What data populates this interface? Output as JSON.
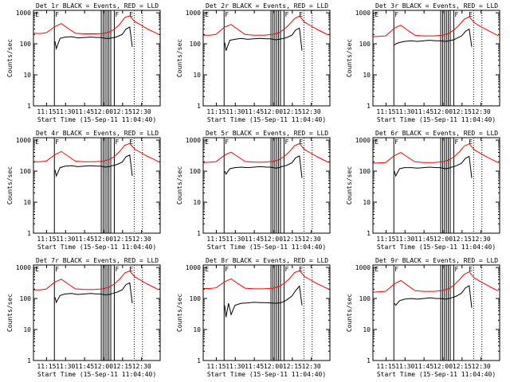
{
  "figure": {
    "background": "#ffffff",
    "series_colors": {
      "events": "#000000",
      "lld": "#ff0000"
    },
    "common": {
      "ylabel": "Counts/sec",
      "xlabel": "Start Time (15-Sep-11 11:04:40)",
      "x_ticks": [
        "11:15",
        "11:30",
        "11:45",
        "12:00",
        "12:15",
        "12:30"
      ],
      "x_tick_minutes": [
        10.33,
        25.33,
        40.33,
        55.33,
        70.33,
        85.33
      ],
      "x_range_minutes": [
        0,
        100
      ],
      "y_ticks": [
        "1",
        "10",
        "100",
        "1000"
      ],
      "y_tick_values": [
        1,
        10,
        100,
        1000
      ],
      "y_range": [
        1,
        1200
      ],
      "y_scale": "log",
      "flag_labels": [
        "E",
        "F",
        "F",
        "E"
      ],
      "flag_minutes": [
        0.8,
        16.5,
        63.8,
        75.0
      ],
      "solid_vlines_minutes": [
        16.5,
        53.5,
        55.0,
        56.5,
        58.0,
        59.5,
        61.0,
        63.8
      ],
      "dotted_vlines_minutes": [
        79.5,
        86.0
      ]
    }
  },
  "chart_data": [
    {
      "type": "line",
      "title": "Det 1r BLACK = Events, RED = LLD",
      "series": [
        {
          "x": [
            0,
            5,
            10,
            17,
            22,
            27,
            33,
            40,
            48,
            55,
            60,
            64,
            68,
            72,
            76,
            80,
            85,
            90,
            95,
            99
          ],
          "values": [
            220,
            215,
            225,
            360,
            450,
            320,
            220,
            210,
            210,
            215,
            240,
            300,
            420,
            700,
            800,
            520,
            400,
            300,
            240,
            200
          ]
        },
        {
          "x": [
            17,
            18,
            21,
            25,
            30,
            35,
            40,
            45,
            50,
            53,
            57,
            60,
            62,
            63.8,
            66,
            70,
            73,
            76,
            78
          ],
          "values": [
            120,
            70,
            150,
            165,
            170,
            155,
            160,
            165,
            160,
            160,
            150,
            150,
            155,
            160,
            170,
            200,
            300,
            350,
            80
          ]
        }
      ]
    },
    {
      "type": "line",
      "title": "Det 2r BLACK = Events, RED = LLD",
      "series": [
        {
          "x": [
            0,
            5,
            10,
            17,
            22,
            27,
            33,
            40,
            48,
            55,
            60,
            64,
            68,
            72,
            76,
            80,
            85,
            90,
            95,
            99
          ],
          "values": [
            190,
            190,
            200,
            350,
            420,
            300,
            200,
            190,
            190,
            200,
            230,
            300,
            420,
            650,
            780,
            500,
            380,
            290,
            230,
            190
          ]
        },
        {
          "x": [
            17,
            18,
            21,
            25,
            30,
            35,
            40,
            45,
            50,
            53,
            57,
            60,
            62,
            63.8,
            66,
            70,
            73,
            76,
            78
          ],
          "values": [
            110,
            60,
            130,
            140,
            150,
            140,
            145,
            150,
            145,
            145,
            135,
            140,
            145,
            150,
            160,
            190,
            280,
            320,
            60
          ]
        }
      ]
    },
    {
      "type": "line",
      "title": "Det 3r BLACK = Events, RED = LLD",
      "series": [
        {
          "x": [
            0,
            5,
            10,
            17,
            22,
            27,
            33,
            40,
            48,
            55,
            60,
            64,
            68,
            72,
            76,
            80,
            85,
            90,
            95,
            99
          ],
          "values": [
            170,
            175,
            180,
            320,
            400,
            280,
            190,
            180,
            180,
            190,
            220,
            280,
            400,
            620,
            750,
            480,
            360,
            280,
            220,
            180
          ]
        },
        {
          "x": [
            17,
            18,
            21,
            25,
            30,
            35,
            40,
            45,
            50,
            53,
            57,
            60,
            62,
            63.8,
            66,
            70,
            73,
            76,
            78
          ],
          "values": [
            90,
            100,
            110,
            120,
            125,
            120,
            125,
            130,
            125,
            125,
            120,
            125,
            130,
            135,
            150,
            180,
            250,
            300,
            80
          ]
        }
      ]
    },
    {
      "type": "line",
      "title": "Det 4r BLACK = Events, RED = LLD",
      "series": [
        {
          "x": [
            0,
            5,
            10,
            17,
            22,
            27,
            33,
            40,
            48,
            55,
            60,
            64,
            68,
            72,
            76,
            80,
            85,
            90,
            95,
            99
          ],
          "values": [
            200,
            200,
            210,
            340,
            430,
            310,
            210,
            200,
            200,
            210,
            240,
            300,
            430,
            680,
            780,
            510,
            390,
            300,
            240,
            200
          ]
        },
        {
          "x": [
            17,
            18,
            21,
            25,
            30,
            35,
            40,
            45,
            50,
            53,
            57,
            60,
            62,
            63.8,
            66,
            70,
            73,
            76,
            78
          ],
          "values": [
            110,
            70,
            130,
            145,
            150,
            140,
            145,
            150,
            145,
            145,
            135,
            140,
            150,
            155,
            165,
            195,
            290,
            330,
            70
          ]
        }
      ]
    },
    {
      "type": "line",
      "title": "Det 5r BLACK = Events, RED = LLD",
      "series": [
        {
          "x": [
            0,
            5,
            10,
            17,
            22,
            27,
            33,
            40,
            48,
            55,
            60,
            64,
            68,
            72,
            76,
            80,
            85,
            90,
            95,
            99
          ],
          "values": [
            190,
            195,
            200,
            330,
            410,
            300,
            205,
            195,
            195,
            205,
            235,
            300,
            420,
            660,
            770,
            500,
            380,
            290,
            230,
            190
          ]
        },
        {
          "x": [
            17,
            18,
            21,
            25,
            30,
            35,
            40,
            45,
            50,
            53,
            57,
            60,
            62,
            63.8,
            66,
            70,
            73,
            76,
            78
          ],
          "values": [
            100,
            80,
            120,
            130,
            135,
            130,
            135,
            140,
            135,
            135,
            125,
            130,
            140,
            145,
            155,
            185,
            270,
            310,
            60
          ]
        }
      ]
    },
    {
      "type": "line",
      "title": "Det 6r BLACK = Events, RED = LLD",
      "series": [
        {
          "x": [
            0,
            5,
            10,
            17,
            22,
            27,
            33,
            40,
            48,
            55,
            60,
            64,
            68,
            72,
            76,
            80,
            85,
            90,
            95,
            99
          ],
          "values": [
            180,
            185,
            190,
            320,
            400,
            290,
            200,
            190,
            190,
            200,
            230,
            290,
            410,
            640,
            760,
            490,
            370,
            285,
            225,
            185
          ]
        },
        {
          "x": [
            17,
            18,
            21,
            25,
            30,
            35,
            40,
            45,
            50,
            53,
            57,
            60,
            62,
            63.8,
            66,
            70,
            73,
            76,
            78
          ],
          "values": [
            100,
            70,
            120,
            130,
            130,
            125,
            130,
            135,
            130,
            130,
            120,
            125,
            135,
            140,
            150,
            180,
            260,
            300,
            60
          ]
        }
      ]
    },
    {
      "type": "line",
      "title": "Det 7r BLACK = Events, RED = LLD",
      "series": [
        {
          "x": [
            0,
            5,
            10,
            17,
            22,
            27,
            33,
            40,
            48,
            55,
            60,
            64,
            68,
            72,
            76,
            80,
            85,
            90,
            95,
            99
          ],
          "values": [
            190,
            190,
            200,
            340,
            420,
            300,
            205,
            195,
            195,
            205,
            235,
            300,
            420,
            660,
            770,
            500,
            380,
            290,
            230,
            190
          ]
        },
        {
          "x": [
            17,
            18,
            21,
            25,
            30,
            35,
            40,
            45,
            50,
            53,
            57,
            60,
            62,
            63.8,
            66,
            70,
            73,
            76,
            78
          ],
          "values": [
            110,
            75,
            125,
            140,
            145,
            135,
            140,
            145,
            140,
            140,
            130,
            135,
            145,
            150,
            160,
            190,
            280,
            320,
            70
          ]
        }
      ]
    },
    {
      "type": "line",
      "title": "Det 8r BLACK = Events, RED = LLD",
      "series": [
        {
          "x": [
            0,
            5,
            10,
            17,
            22,
            27,
            33,
            40,
            48,
            55,
            60,
            64,
            68,
            72,
            76,
            80,
            85,
            90,
            95,
            99
          ],
          "values": [
            210,
            210,
            220,
            350,
            430,
            310,
            215,
            205,
            205,
            215,
            245,
            310,
            430,
            680,
            790,
            510,
            390,
            300,
            240,
            200
          ]
        },
        {
          "x": [
            17,
            18,
            20,
            22,
            25,
            30,
            35,
            40,
            45,
            50,
            53,
            57,
            60,
            62,
            63.8,
            66,
            70,
            73,
            76,
            78
          ],
          "values": [
            60,
            25,
            70,
            30,
            60,
            70,
            72,
            75,
            74,
            73,
            72,
            70,
            72,
            75,
            80,
            90,
            120,
            180,
            250,
            60
          ]
        }
      ]
    },
    {
      "type": "line",
      "title": "Det 9r BLACK = Events, RED = LLD",
      "series": [
        {
          "x": [
            0,
            5,
            10,
            17,
            22,
            27,
            33,
            40,
            48,
            55,
            60,
            64,
            68,
            72,
            76,
            80,
            85,
            90,
            95,
            99
          ],
          "values": [
            160,
            165,
            170,
            300,
            380,
            270,
            180,
            170,
            170,
            180,
            210,
            270,
            390,
            600,
            720,
            460,
            350,
            270,
            210,
            175
          ]
        },
        {
          "x": [
            17,
            18,
            21,
            25,
            30,
            35,
            40,
            45,
            50,
            53,
            57,
            60,
            62,
            63.8,
            66,
            70,
            73,
            76,
            78
          ],
          "values": [
            70,
            60,
            85,
            95,
            100,
            95,
            100,
            105,
            100,
            100,
            95,
            100,
            105,
            110,
            120,
            150,
            220,
            260,
            50
          ]
        }
      ]
    }
  ]
}
